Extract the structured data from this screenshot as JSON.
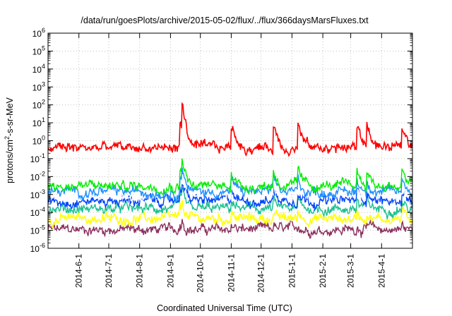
{
  "chart_data": {
    "type": "line",
    "title": "/data/run/goesPlots/archive/2015-05-02/flux/../flux/366daysMarsFluxes.txt",
    "xlabel": "Coordinated Universal Time (UTC)",
    "ylabel_main": "protons/cm",
    "ylabel_sup": "2",
    "ylabel_tail": "-s-sr-MeV",
    "yscale": "log",
    "ylim": [
      1e-06,
      1000000.0
    ],
    "grid": true,
    "y_ticks": [
      {
        "exp": -6,
        "base": "10",
        "sup": "-6"
      },
      {
        "exp": -5,
        "base": "10",
        "sup": "-5"
      },
      {
        "exp": -4,
        "base": "10",
        "sup": "-4"
      },
      {
        "exp": -3,
        "base": "10",
        "sup": "-3"
      },
      {
        "exp": -2,
        "base": "10",
        "sup": "-2"
      },
      {
        "exp": -1,
        "base": "10",
        "sup": "-1"
      },
      {
        "exp": 0,
        "base": "10",
        "sup": "0"
      },
      {
        "exp": 1,
        "base": "10",
        "sup": "1"
      },
      {
        "exp": 2,
        "base": "10",
        "sup": "2"
      },
      {
        "exp": 3,
        "base": "10",
        "sup": "3"
      },
      {
        "exp": 4,
        "base": "10",
        "sup": "4"
      },
      {
        "exp": 5,
        "base": "10",
        "sup": "5"
      },
      {
        "exp": 6,
        "base": "10",
        "sup": "6"
      }
    ],
    "xlim": [
      "2014-05-01",
      "2015-05-02"
    ],
    "x_ticks": [
      "2014-6-1",
      "2014-7-1",
      "2014-8-1",
      "2014-9-1",
      "2014-10-1",
      "2014-11-1",
      "2014-12-1",
      "2015-1-1",
      "2015-2-1",
      "2015-3-1",
      "2015-4-1"
    ],
    "events": [
      "2014-09-10",
      "2014-09-12",
      "2014-11-01",
      "2014-12-13",
      "2015-01-07",
      "2015-03-07",
      "2015-03-17",
      "2015-04-21"
    ],
    "series": [
      {
        "color": "#8b2f5d",
        "base": 1.1e-05,
        "spikeMult": 2.0
      },
      {
        "color": "#ffff00",
        "base": 4.5e-05,
        "spikeMult": 2.5
      },
      {
        "color": "#19c08f",
        "base": 0.00016,
        "spikeMult": 3.0
      },
      {
        "color": "#0044ff",
        "base": 0.00045,
        "spikeMult": 5.0
      },
      {
        "color": "#ffffff",
        "base": 0.001,
        "spikeMult": 4.0
      },
      {
        "color": "#1e90ff",
        "base": 0.0014,
        "spikeMult": 6.0
      },
      {
        "color": "#00ee00",
        "base": 0.003,
        "spikeMult": 8.0
      },
      {
        "color": "#ff0000",
        "base": 0.4,
        "spikeMult": 20.0
      }
    ]
  }
}
